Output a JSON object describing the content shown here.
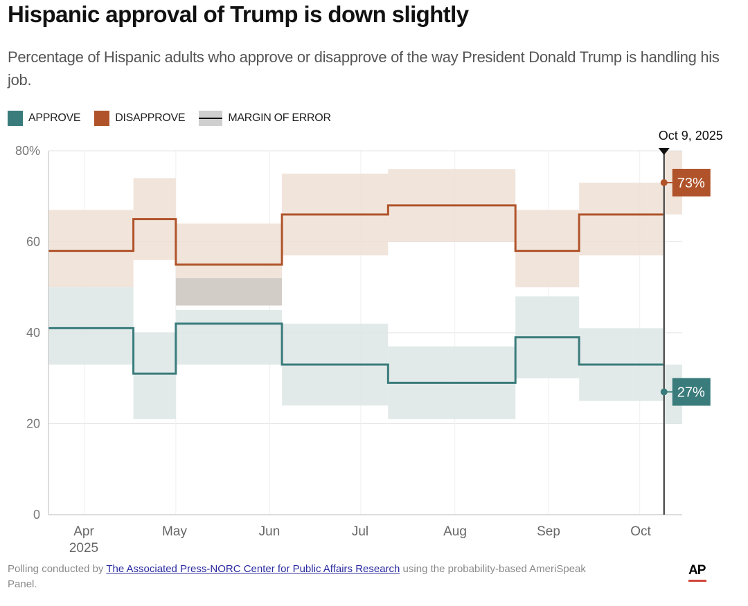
{
  "header": {
    "title": "Hispanic approval of Trump is down slightly",
    "subtitle": "Percentage of Hispanic adults who approve or disapprove of the way President Donald Trump is handling his job."
  },
  "legend": {
    "approve": "APPROVE",
    "disapprove": "DISAPPROVE",
    "moe": "MARGIN OF ERROR"
  },
  "colors": {
    "approve": "#3a7b7b",
    "disapprove": "#b0532a",
    "approve_band": "#dce6e5",
    "disapprove_band": "#efdfd5",
    "overlap_band": "#d2cdc7"
  },
  "chart_data": {
    "type": "line",
    "step": true,
    "title": "Hispanic approval of Trump is down slightly",
    "ylabel": "",
    "xlabel": "",
    "ylim": [
      0,
      80
    ],
    "yticks": [
      0,
      20,
      40,
      60,
      80
    ],
    "ytick_labels": [
      "0",
      "20",
      "40",
      "60",
      "80%"
    ],
    "xticks": [
      "Apr\n2025",
      "May",
      "Jun",
      "Jul",
      "Aug",
      "Sep",
      "Oct"
    ],
    "x_range": [
      "2025-03-20",
      "2025-10-15"
    ],
    "grid": true,
    "legend_position": "top-left",
    "periods": [
      {
        "start": "2025-03-20",
        "end": "2025-04-17"
      },
      {
        "start": "2025-04-17",
        "end": "2025-05-01"
      },
      {
        "start": "2025-05-01",
        "end": "2025-06-05"
      },
      {
        "start": "2025-06-05",
        "end": "2025-07-10"
      },
      {
        "start": "2025-07-10",
        "end": "2025-08-21"
      },
      {
        "start": "2025-08-21",
        "end": "2025-09-11"
      },
      {
        "start": "2025-09-11",
        "end": "2025-10-09"
      },
      {
        "start": "2025-10-09",
        "end": "2025-10-15"
      }
    ],
    "series": [
      {
        "name": "Disapprove",
        "values": [
          58,
          65,
          55,
          66,
          68,
          58,
          66,
          73
        ],
        "moe_low": [
          50,
          56,
          46,
          57,
          60,
          50,
          57,
          66
        ],
        "moe_high": [
          67,
          74,
          64,
          75,
          76,
          67,
          73,
          80
        ]
      },
      {
        "name": "Approve",
        "values": [
          41,
          31,
          42,
          33,
          29,
          39,
          33,
          27
        ],
        "moe_low": [
          33,
          21,
          33,
          24,
          21,
          30,
          25,
          20
        ],
        "moe_high": [
          50,
          40,
          45,
          42,
          37,
          48,
          41,
          33
        ]
      }
    ],
    "overlap": {
      "period_index": 2,
      "low": 46,
      "high": 52
    },
    "annotation": {
      "date_label": "Oct 9, 2025",
      "date": "2025-10-09",
      "disapprove_label": "73%",
      "approve_label": "27%"
    }
  },
  "footer": {
    "prefix": "Polling conducted by ",
    "link_text": "The Associated Press-NORC Center for Public Affairs Research",
    "suffix": " using the probability-based AmeriSpeak Panel.",
    "logo": "AP"
  }
}
